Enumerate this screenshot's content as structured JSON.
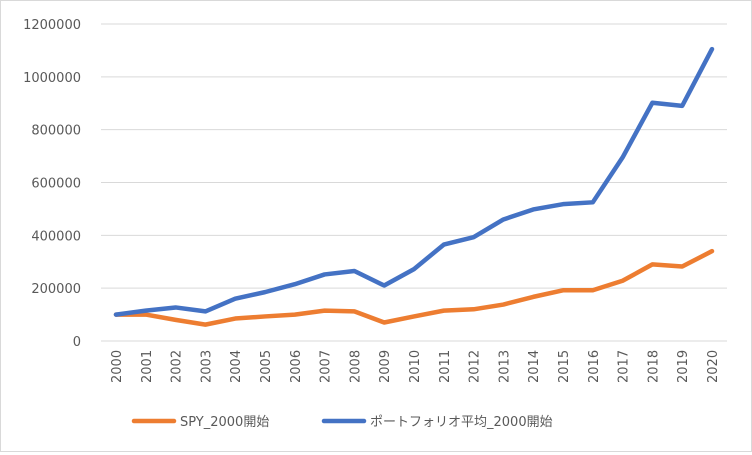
{
  "chart_data": {
    "type": "line",
    "title": "",
    "xlabel": "",
    "ylabel": "",
    "x": [
      2000,
      2001,
      2002,
      2003,
      2004,
      2005,
      2006,
      2007,
      2008,
      2009,
      2010,
      2011,
      2012,
      2013,
      2014,
      2015,
      2016,
      2017,
      2018,
      2019,
      2020
    ],
    "ylim": [
      0,
      1200000
    ],
    "yticks": [
      0,
      200000,
      400000,
      600000,
      800000,
      1000000,
      1200000
    ],
    "grid": true,
    "legend_position": "bottom",
    "series": [
      {
        "name": "SPY_2000開始",
        "color": "#ED7D31",
        "values": [
          100000,
          100000,
          80000,
          62000,
          85000,
          93000,
          100000,
          115000,
          112000,
          70000,
          93000,
          115000,
          120000,
          138000,
          167000,
          192000,
          192000,
          228000,
          290000,
          282000,
          340000
        ]
      },
      {
        "name": "ポートフォリオ平均_2000開始",
        "color": "#4472C4",
        "values": [
          100000,
          115000,
          127000,
          112000,
          160000,
          185000,
          215000,
          252000,
          265000,
          210000,
          272000,
          365000,
          393000,
          460000,
          498000,
          518000,
          525000,
          695000,
          902000,
          890000,
          1105000
        ]
      }
    ]
  }
}
